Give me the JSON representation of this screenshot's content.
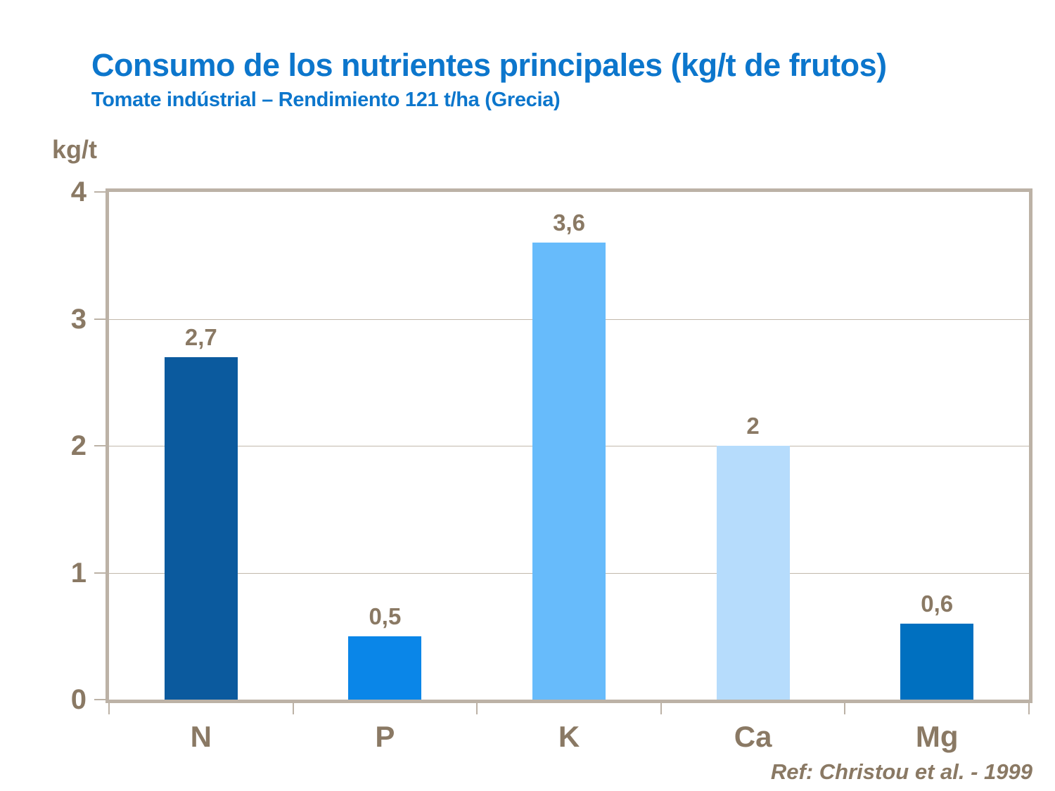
{
  "title": "Consumo de los nutrientes principales (kg/t de frutos)",
  "subtitle": "Tomate indústrial – Rendimiento  121 t/ha (Grecia)",
  "y_axis_unit_label": "kg/t",
  "reference": "Ref: Christou et al. - 1999",
  "colors": {
    "title_blue": "#0C76CC",
    "label_brown": "#8A7964",
    "frame_taupe": "#BCB2A6",
    "gridline": "#C2B8AC"
  },
  "chart_data": {
    "type": "bar",
    "title": "Consumo de los nutrientes principales (kg/t de frutos)",
    "subtitle": "Tomate indústrial – Rendimiento 121 t/ha (Grecia)",
    "categories": [
      "N",
      "P",
      "K",
      "Ca",
      "Mg"
    ],
    "values": [
      2.7,
      0.5,
      3.6,
      2,
      0.6
    ],
    "value_labels": [
      "2,7",
      "0,5",
      "3,6",
      "2",
      "0,6"
    ],
    "bar_colors": [
      "#0B5A9E",
      "#0A86E8",
      "#67BBFB",
      "#B6DCFC",
      "#0070C0"
    ],
    "xlabel": "",
    "ylabel": "kg/t",
    "ylim": [
      0,
      4
    ],
    "yticks": [
      0,
      1,
      2,
      3,
      4
    ],
    "gridline_values": [
      1,
      2,
      3
    ],
    "grid": true,
    "legend_position": "none"
  }
}
